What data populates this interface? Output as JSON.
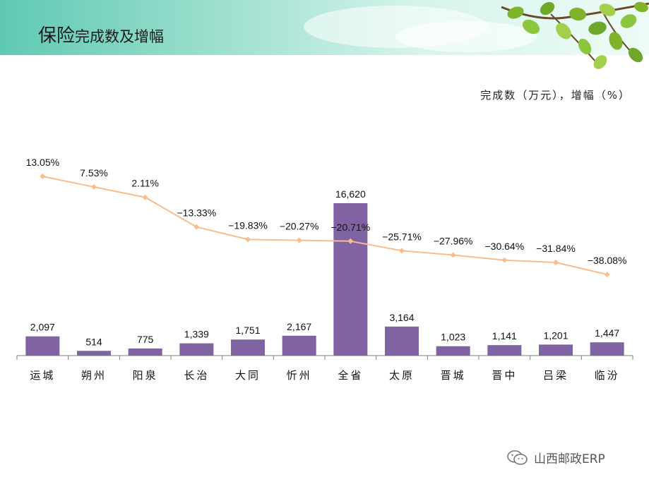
{
  "slide": {
    "title_main": "保险",
    "title_sub": "完成数及增幅",
    "unit_label": "完成数（万元），增幅（%）",
    "watermark": "山西邮政ERP",
    "icons": [
      "wechat-icon",
      "leaves-decoration-icon"
    ]
  },
  "colors": {
    "bar": "#8063a2",
    "line": "#f6be8f",
    "axis": "#7f7f7f"
  },
  "chart_data": {
    "type": "bar+line",
    "title": "保险完成数及增幅",
    "categories": [
      "运城",
      "朔州",
      "阳泉",
      "长治",
      "大同",
      "忻州",
      "全省",
      "太原",
      "晋城",
      "晋中",
      "吕梁",
      "临汾"
    ],
    "series": [
      {
        "name": "完成数（万元）",
        "type": "bar",
        "values": [
          2097,
          514,
          775,
          1339,
          1751,
          2167,
          16620,
          3164,
          1023,
          1141,
          1201,
          1447
        ],
        "labels": [
          "2,097",
          "514",
          "775",
          "1,339",
          "1,751",
          "2,167",
          "16,620",
          "3,164",
          "1,023",
          "1,141",
          "1,201",
          "1,447"
        ]
      },
      {
        "name": "增幅（%）",
        "type": "line",
        "values": [
          13.05,
          7.53,
          2.11,
          -13.33,
          -19.83,
          -20.27,
          -20.71,
          -25.71,
          -27.96,
          -30.64,
          -31.84,
          -38.08
        ],
        "labels": [
          "13.05%",
          "7.53%",
          "2.11%",
          "−13.33%",
          "−19.83%",
          "−20.27%",
          "−20.71%",
          "−25.71%",
          "−27.96%",
          "−30.64%",
          "−31.84%",
          "−38.08%"
        ]
      }
    ],
    "ylim_bar": [
      0,
      18000
    ],
    "ylim_line": [
      -45,
      20
    ],
    "grid": false,
    "legend": "none"
  }
}
